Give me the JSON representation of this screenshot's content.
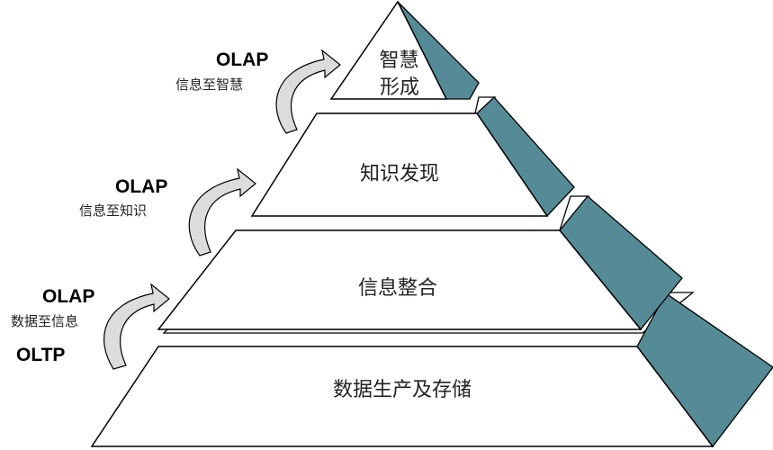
{
  "colors": {
    "tier_fill": "#ffffff",
    "tier_stroke": "#000000",
    "side_face": "#558b97",
    "arrow_fill": "#dcdcdc",
    "text": "#000000"
  },
  "tiers": [
    {
      "id": "wisdom",
      "lines": [
        "智慧",
        "形成"
      ]
    },
    {
      "id": "knowledge",
      "lines": [
        "知识发现"
      ]
    },
    {
      "id": "info",
      "lines": [
        "信息整合"
      ]
    },
    {
      "id": "data",
      "lines": [
        "数据生产及存储"
      ]
    }
  ],
  "annotations": [
    {
      "id": "wisdom",
      "title": "OLAP",
      "subtitle": "信息至智慧",
      "icon": "curved-arrow-icon"
    },
    {
      "id": "knowledge",
      "title": "OLAP",
      "subtitle": "信息至知识",
      "icon": "curved-arrow-icon"
    },
    {
      "id": "info",
      "title": "OLAP",
      "subtitle": "数据至信息",
      "icon": "curved-arrow-icon"
    },
    {
      "id": "oltp",
      "title": "OLTP",
      "subtitle": "",
      "icon": ""
    }
  ]
}
